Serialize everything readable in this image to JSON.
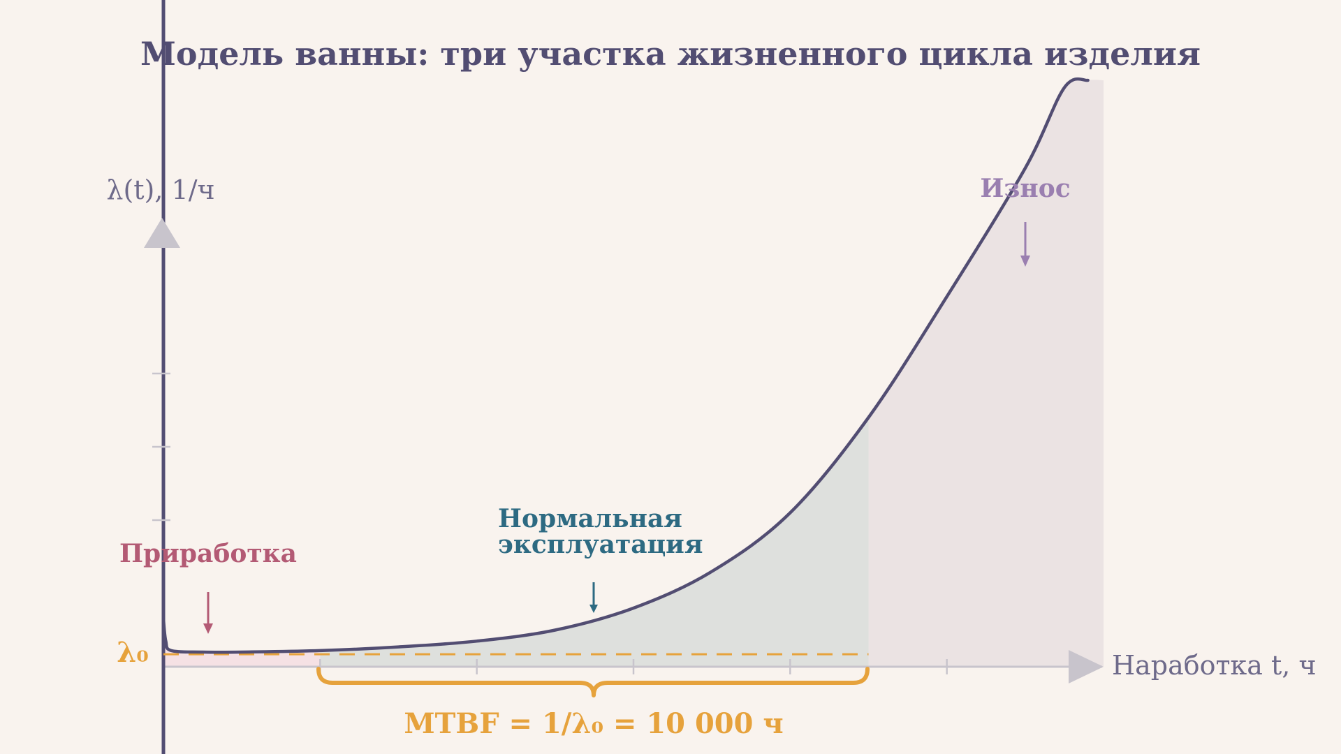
{
  "chart_data": {
    "type": "area",
    "title": "Модель ванны: три участка жизненного цикла изделия",
    "ylabel": "λ(t), 1/ч",
    "xlabel": "Наработка t, ч",
    "baseline_label": "λ₀",
    "mtbf_label": "MTBF = 1/λ₀ = 10 000 ч",
    "xlim": [
      0,
      12
    ],
    "ylim": [
      0,
      8
    ],
    "x_ticks": [
      2,
      4,
      6,
      8,
      10
    ],
    "y_ticks": [
      2,
      3,
      4
    ],
    "lambda0": 0.17,
    "phases": [
      {
        "key": "burnin",
        "label": "Приработка",
        "x_start": 0,
        "x_end": 2,
        "color": "#b35a74",
        "fill": "#f5e1e4"
      },
      {
        "key": "normal",
        "label_lines": [
          "Нормальная",
          "эксплуатация"
        ],
        "x_start": 2,
        "x_end": 9,
        "color": "#2d6a82",
        "fill": "#dee0dd"
      },
      {
        "key": "wearout",
        "label": "Износ",
        "x_start": 9,
        "x_end": 12,
        "color": "#9a7fb0",
        "fill": "#ebe3e3"
      }
    ],
    "mtbf_span": [
      2,
      9
    ],
    "curve": [
      {
        "x": 0.0,
        "y": 0.65
      },
      {
        "x": 0.03,
        "y": 0.35
      },
      {
        "x": 0.1,
        "y": 0.22
      },
      {
        "x": 0.5,
        "y": 0.2
      },
      {
        "x": 1.0,
        "y": 0.2
      },
      {
        "x": 2.0,
        "y": 0.22
      },
      {
        "x": 3.0,
        "y": 0.27
      },
      {
        "x": 4.0,
        "y": 0.35
      },
      {
        "x": 5.0,
        "y": 0.5
      },
      {
        "x": 6.0,
        "y": 0.8
      },
      {
        "x": 7.0,
        "y": 1.3
      },
      {
        "x": 8.0,
        "y": 2.1
      },
      {
        "x": 9.0,
        "y": 3.4
      },
      {
        "x": 10.0,
        "y": 5.05
      },
      {
        "x": 11.0,
        "y": 6.8
      },
      {
        "x": 11.5,
        "y": 7.9
      },
      {
        "x": 11.8,
        "y": 8.0
      }
    ],
    "colors": {
      "curve": "#524d72",
      "axis": "#c8c4cc",
      "baseline": "#e6a23c",
      "title": "#524d72"
    }
  }
}
